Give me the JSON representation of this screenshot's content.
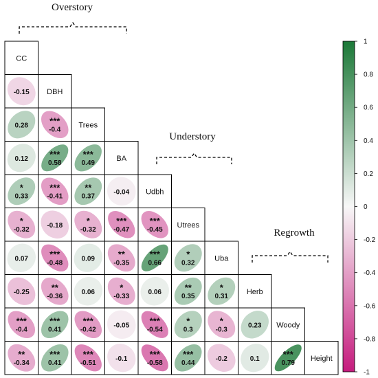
{
  "chart_data": {
    "type": "heatmap",
    "variables": [
      "CC",
      "DBH",
      "Trees",
      "BA",
      "Udbh",
      "Utrees",
      "Uba",
      "Herb",
      "Woody",
      "Height"
    ],
    "groups": [
      {
        "title": "Overstory"
      },
      {
        "title": "Understory"
      },
      {
        "title": "Regrowth"
      }
    ],
    "cells": [
      {
        "row": 1,
        "col": 0,
        "value": -0.15,
        "stars": ""
      },
      {
        "row": 2,
        "col": 0,
        "value": 0.28,
        "stars": ""
      },
      {
        "row": 2,
        "col": 1,
        "value": -0.4,
        "stars": "***"
      },
      {
        "row": 3,
        "col": 0,
        "value": 0.12,
        "stars": ""
      },
      {
        "row": 3,
        "col": 1,
        "value": 0.58,
        "stars": "***"
      },
      {
        "row": 3,
        "col": 2,
        "value": 0.49,
        "stars": "***"
      },
      {
        "row": 4,
        "col": 0,
        "value": 0.33,
        "stars": "*"
      },
      {
        "row": 4,
        "col": 1,
        "value": -0.41,
        "stars": "***"
      },
      {
        "row": 4,
        "col": 2,
        "value": 0.37,
        "stars": "**"
      },
      {
        "row": 4,
        "col": 3,
        "value": -0.04,
        "stars": ""
      },
      {
        "row": 5,
        "col": 0,
        "value": -0.32,
        "stars": "*"
      },
      {
        "row": 5,
        "col": 1,
        "value": -0.18,
        "stars": ""
      },
      {
        "row": 5,
        "col": 2,
        "value": -0.32,
        "stars": "*"
      },
      {
        "row": 5,
        "col": 3,
        "value": -0.47,
        "stars": "***"
      },
      {
        "row": 5,
        "col": 4,
        "value": -0.45,
        "stars": "***"
      },
      {
        "row": 6,
        "col": 0,
        "value": 0.07,
        "stars": ""
      },
      {
        "row": 6,
        "col": 1,
        "value": -0.48,
        "stars": "***"
      },
      {
        "row": 6,
        "col": 2,
        "value": 0.09,
        "stars": ""
      },
      {
        "row": 6,
        "col": 3,
        "value": -0.35,
        "stars": "**"
      },
      {
        "row": 6,
        "col": 4,
        "value": 0.66,
        "stars": "***"
      },
      {
        "row": 6,
        "col": 5,
        "value": 0.32,
        "stars": "*"
      },
      {
        "row": 7,
        "col": 0,
        "value": -0.25,
        "stars": ""
      },
      {
        "row": 7,
        "col": 1,
        "value": -0.36,
        "stars": "**"
      },
      {
        "row": 7,
        "col": 2,
        "value": 0.06,
        "stars": ""
      },
      {
        "row": 7,
        "col": 3,
        "value": -0.33,
        "stars": "*"
      },
      {
        "row": 7,
        "col": 4,
        "value": 0.06,
        "stars": ""
      },
      {
        "row": 7,
        "col": 5,
        "value": 0.35,
        "stars": "**"
      },
      {
        "row": 7,
        "col": 6,
        "value": 0.31,
        "stars": "*"
      },
      {
        "row": 8,
        "col": 0,
        "value": -0.4,
        "stars": "***"
      },
      {
        "row": 8,
        "col": 1,
        "value": 0.41,
        "stars": "***"
      },
      {
        "row": 8,
        "col": 2,
        "value": -0.42,
        "stars": "***"
      },
      {
        "row": 8,
        "col": 3,
        "value": -0.05,
        "stars": ""
      },
      {
        "row": 8,
        "col": 4,
        "value": -0.54,
        "stars": "***"
      },
      {
        "row": 8,
        "col": 5,
        "value": 0.3,
        "stars": "*"
      },
      {
        "row": 8,
        "col": 6,
        "value": -0.3,
        "stars": "*"
      },
      {
        "row": 8,
        "col": 7,
        "value": 0.23,
        "stars": ""
      },
      {
        "row": 9,
        "col": 0,
        "value": -0.34,
        "stars": "**"
      },
      {
        "row": 9,
        "col": 1,
        "value": 0.41,
        "stars": "***"
      },
      {
        "row": 9,
        "col": 2,
        "value": -0.51,
        "stars": "***"
      },
      {
        "row": 9,
        "col": 3,
        "value": -0.1,
        "stars": ""
      },
      {
        "row": 9,
        "col": 4,
        "value": -0.58,
        "stars": "***"
      },
      {
        "row": 9,
        "col": 5,
        "value": 0.44,
        "stars": "***"
      },
      {
        "row": 9,
        "col": 6,
        "value": -0.2,
        "stars": ""
      },
      {
        "row": 9,
        "col": 7,
        "value": 0.1,
        "stars": ""
      },
      {
        "row": 9,
        "col": 8,
        "value": 0.79,
        "stars": "***"
      }
    ],
    "colorbar": {
      "range": [
        -1,
        1
      ],
      "ticks": [
        "1",
        "0.8",
        "0.6",
        "0.4",
        "0.2",
        "0",
        "-0.2",
        "-0.4",
        "-0.6",
        "-0.8",
        "-1"
      ],
      "colors": {
        "negative": "#c51b7d",
        "neutral": "#f7f7f7",
        "positive": "#1b7837"
      }
    },
    "grid": true,
    "legend": "right"
  }
}
